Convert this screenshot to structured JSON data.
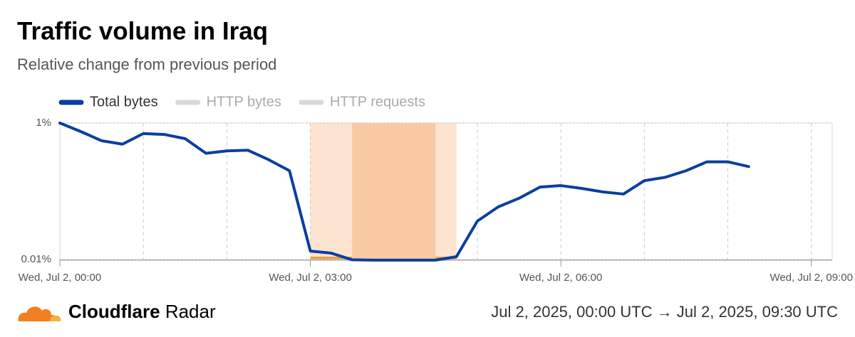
{
  "chart_data": {
    "type": "line",
    "title": "Traffic volume in Iraq",
    "subtitle": "Relative change from previous period",
    "x": [
      0,
      0.25,
      0.5,
      0.75,
      1,
      1.25,
      1.5,
      1.75,
      2,
      2.25,
      2.5,
      2.75,
      3,
      3.25,
      3.5,
      3.75,
      4,
      4.25,
      4.5,
      4.75,
      5,
      5.25,
      5.5,
      5.75,
      6,
      6.25,
      6.5,
      6.75,
      7,
      7.25,
      7.5,
      7.75,
      8,
      8.25
    ],
    "series": [
      {
        "name": "Total bytes",
        "color": "#0a3f9e",
        "active": true,
        "values": [
          1,
          0.75,
          0.55,
          0.49,
          0.7,
          0.68,
          0.59,
          0.36,
          0.39,
          0.4,
          0.29,
          0.2,
          0.0133,
          0.0124,
          0.0099,
          0.0098,
          0.0098,
          0.0098,
          0.0098,
          0.011,
          0.0365,
          0.059,
          0.079,
          0.115,
          0.121,
          0.11,
          0.098,
          0.091,
          0.143,
          0.16,
          0.2,
          0.27,
          0.27,
          0.23
        ]
      },
      {
        "name": "HTTP bytes",
        "color": "#d9d9d9",
        "active": false
      },
      {
        "name": "HTTP requests",
        "color": "#d9d9d9",
        "active": false
      }
    ],
    "xlim": [
      0,
      9.25
    ],
    "xticks": [
      {
        "value": 0,
        "label": "Wed, Jul 2, 00:00"
      },
      {
        "value": 3,
        "label": "Wed, Jul 2, 03:00"
      },
      {
        "value": 6,
        "label": "Wed, Jul 2, 06:00"
      },
      {
        "value": 9,
        "label": "Wed, Jul 2, 09:00"
      }
    ],
    "xgrid": [
      1,
      2,
      4,
      5,
      7,
      8
    ],
    "ylim": [
      0.01,
      1
    ],
    "yticks": [
      {
        "value": 1,
        "label": "1%"
      },
      {
        "value": 0.01,
        "label": "0.01%"
      }
    ],
    "log_scale_y": true,
    "highlights": [
      {
        "range": [
          3,
          4.75
        ],
        "color": "#fde4d0"
      },
      {
        "range": [
          3.5,
          4.5
        ],
        "color": "#f9caa2"
      }
    ],
    "highlight_bar_color": "#f29a45"
  },
  "footer": {
    "brand": "Cloudflare",
    "product": "Radar",
    "range": "Jul 2, 2025, 00:00 UTC → Jul 2, 2025, 09:30 UTC"
  }
}
